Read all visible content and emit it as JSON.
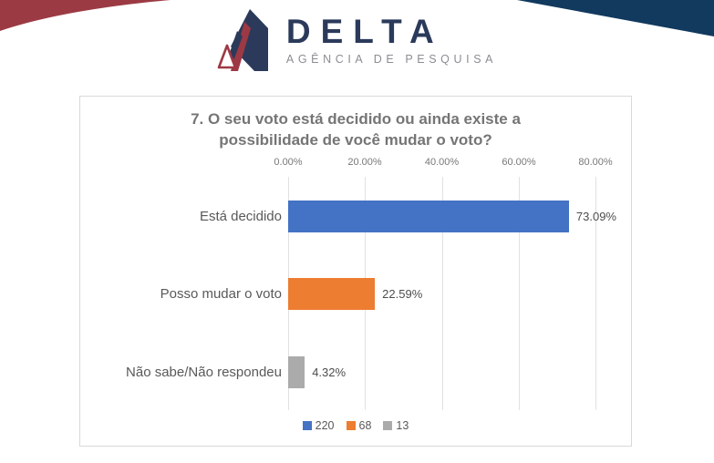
{
  "header": {
    "logo_text": "DELTA",
    "logo_subtitle": "AGÊNCIA DE PESQUISA"
  },
  "chart_data": {
    "type": "bar",
    "orientation": "horizontal",
    "title": "7. O seu voto está decidido ou ainda existe a possibilidade de você mudar o voto?",
    "categories": [
      "Está decidido",
      "Posso mudar o voto",
      "Não sabe/Não respondeu"
    ],
    "values": [
      73.09,
      22.59,
      4.32
    ],
    "value_labels": [
      "73.09%",
      "22.59%",
      "4.32%"
    ],
    "counts": [
      220,
      68,
      13
    ],
    "colors": [
      "#4472C4",
      "#ED7D31",
      "#ABABAB"
    ],
    "x_ticks": [
      "0.00%",
      "20.00%",
      "40.00%",
      "60.00%",
      "80.00%"
    ],
    "xlim": [
      0,
      80
    ],
    "grid": true,
    "legend_position": "bottom",
    "legend_labels": [
      "220",
      "68",
      "13"
    ]
  },
  "theme": {
    "bar_blue": "#4472C4",
    "bar_orange": "#ED7D31",
    "bar_gray": "#ABABAB",
    "corner_red": "#9C3A43",
    "corner_navy": "#12395E",
    "logo_navy": "#2B3A5A",
    "logo_red": "#9D3944",
    "title_gray": "#757575",
    "card_border": "#D9D9D9"
  }
}
